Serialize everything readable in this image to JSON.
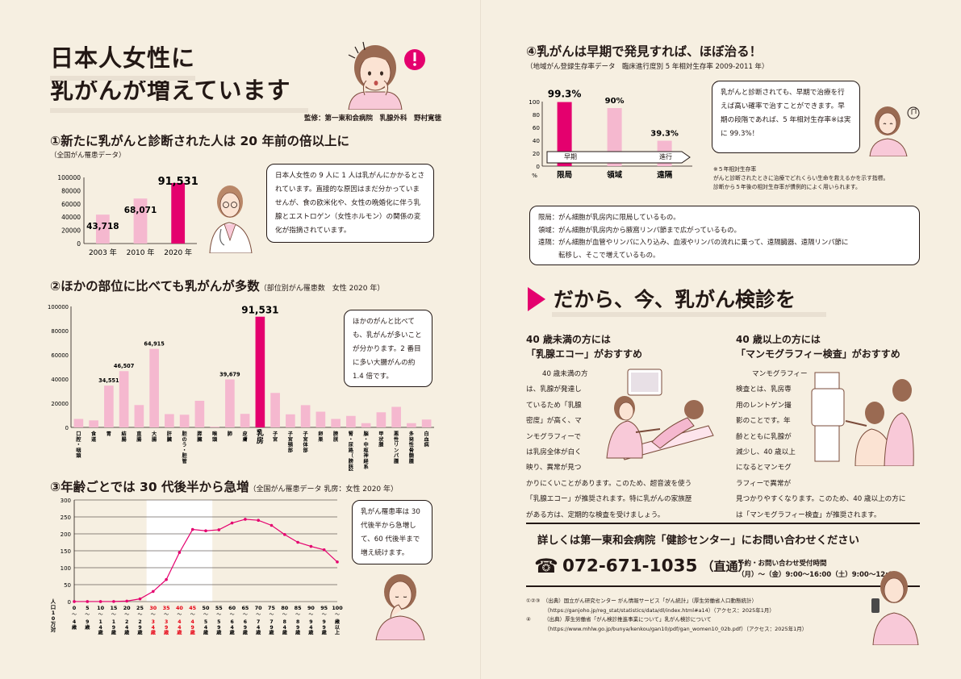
{
  "header": {
    "title_line1": "日本人女性に",
    "title_line2": "乳がんが増えています",
    "supervisor": "監修：第一東和会病院　乳腺外科　野村寛徳"
  },
  "section1": {
    "title": "①新たに乳がんと診断された人は 20 年前の倍以上に",
    "source": "（全国がん罹患データ）",
    "bubble": "日本人女性の 9 人に 1 人は乳がんにかかるとされています。直接的な原因はまだ分かっていませんが、食の欧米化や、女性の晩婚化に伴う乳腺とエストロゲン（女性ホルモン）の関係の変化が指摘されています。"
  },
  "section2": {
    "title": "②ほかの部位に比べても乳がんが多数",
    "subtitle": "（部位別がん罹患数　女性 2020 年）",
    "bubble": "ほかのがんと比べても、乳がんが多いことが分かります。2 番目に多い大腸がんの約 1.4 倍です。"
  },
  "section3": {
    "title": "③年齢ごとでは 30 代後半から急増",
    "subtitle": "（全国がん罹患データ 乳房：女性 2020 年）",
    "bubble": "乳がん罹患率は 30 代後半から急増して、60 代後半まで増え続けます。"
  },
  "section4": {
    "title": "④乳がんは早期で発見すれば、ほぼ治る！",
    "subtitle": "（地域がん登録生存率データ　臨床進行度別 5 年相対生存率 2009-2011 年）",
    "bubble": "乳がんと診断されても、早期で治療を行えば高い確率で治すことができます。早期の段階であれば、5 年相対生存率※は実に 99.3%！",
    "note_title": "※５年相対生存率",
    "note_line1": "がんと診断されたときに治療でどれくらい生命を救えるかを示す指標。",
    "note_line2": "診断から５年後の相対生存率が慣例的によく用いられます。",
    "stage_early": "早期",
    "stage_progress": "進行",
    "definitions": [
      "限局：がん細胞が乳房内に限局しているもの。",
      "領域：がん細胞が乳房内から腋窩リンパ節まで広がっているもの。",
      "遠隔：がん細胞が血管やリンパに入り込み、血液やリンパの流れに乗って、遠隔臓器、遠隔リンパ節に",
      "　　　転移し、そこで増えているもの。"
    ]
  },
  "screening": {
    "title": "だから、今、乳がん検診を",
    "under40_heading1": "40 歳未満の方には",
    "under40_heading2": "「乳腺エコー」がおすすめ",
    "under40_lines": [
      "40 歳未満の方",
      "は、乳腺が発達し",
      "ているため「乳腺",
      "密度」が高く、マ",
      "ンモグラフィーで",
      "は乳房全体が白く",
      "映り、異常が見つ",
      "かりにくいことがあります。このため、超音波を使う",
      "「乳腺エコー」が推奨されます。特に乳がんの家族歴",
      "がある方は、定期的な検査を受けましょう。"
    ],
    "over40_heading1": "40 歳以上の方には",
    "over40_heading2": "「マンモグラフィー検査」がおすすめ",
    "over40_lines": [
      "マンモグラフィー",
      "検査とは、乳房専",
      "用のレントゲン撮",
      "影のことです。年",
      "齢とともに乳腺が",
      "減少し、40 歳以上",
      "になるとマンモグ",
      "ラフィーで異常が",
      "見つかりやすくなります。このため、40 歳以上の方に",
      "は「マンモグラフィー検査」が推奨されます。"
    ]
  },
  "contact": {
    "heading": "詳しくは第一東和会病院「健診センター」にお問い合わせください",
    "phone": "072-671-1035",
    "phone_suffix": "（直通）",
    "hours_title": "予約・お問い合わせ受付時間",
    "hours": "（月）〜（金）9:00〜16:00（土）9:00〜12:00"
  },
  "footnotes": [
    "①②③　（出典）国立がん研究センター がん情報サービス「がん統計」（厚生労働省人口動態統計）",
    "　　　　（https://ganjoho.jp/reg_stat/statistics/data/dl/index.html#a14）（アクセス：2025年1月）",
    "④　　　（出典）厚生労働省「がん検診推進事業について」乳がん検診について",
    "　　　　（https://www.mhlw.go.jp/bunya/kenkou/gan10/pdf/gan_women10_02b.pdf）（アクセス：2025年1月）"
  ],
  "chart_data": [
    {
      "id": "new-cases",
      "type": "bar",
      "categories": [
        "2003 年",
        "2010 年",
        "2020 年"
      ],
      "values": [
        43718,
        68071,
        91531
      ],
      "value_labels": [
        "43,718",
        "68,071",
        "91,531"
      ],
      "yticks": [
        "100000",
        "80000",
        "60000",
        "40000",
        "20000",
        "0"
      ],
      "ylim": [
        0,
        100000
      ],
      "colors": [
        "#f5b8cf",
        "#f5b8cf",
        "#e4006e"
      ]
    },
    {
      "id": "by-site",
      "type": "bar",
      "categories": [
        "口腔・咽頭",
        "食道",
        "胃",
        "結腸",
        "直腸",
        "大腸",
        "肝臓",
        "胆のう・胆管",
        "膵臓",
        "喉頭",
        "肺",
        "皮膚",
        "乳房",
        "子宮",
        "子宮頸部",
        "子宮体部",
        "卵巣",
        "膀胱",
        "腎・尿路（膀胱除く）",
        "脳・中枢神経系",
        "甲状腺",
        "悪性リンパ腫",
        "多発性骨髄腫",
        "白血病"
      ],
      "values": [
        7000,
        5800,
        34551,
        46507,
        18500,
        64915,
        11000,
        10500,
        22000,
        600,
        39679,
        11200,
        91531,
        28500,
        10800,
        18400,
        13000,
        7000,
        9500,
        3500,
        12500,
        17000,
        3500,
        6500
      ],
      "value_labels": {
        "2": "34,551",
        "3": "46,507",
        "5": "64,915",
        "10": "39,679",
        "12": "91,531"
      },
      "yticks": [
        "100000",
        "80000",
        "60000",
        "40000",
        "20000",
        "0"
      ],
      "ylim": [
        0,
        100000
      ]
    },
    {
      "id": "by-age",
      "type": "line",
      "categories": [
        "0〜4歳",
        "5〜9歳",
        "10〜14歳",
        "15〜19歳",
        "20〜24歳",
        "25〜29歳",
        "30〜34歳",
        "35〜39歳",
        "40〜44歳",
        "45〜49歳",
        "50〜54歳",
        "55〜59歳",
        "60〜64歳",
        "65〜69歳",
        "70〜74歳",
        "75〜79歳",
        "80〜84歳",
        "85〜89歳",
        "90〜94歳",
        "95〜99歳",
        "100歳以上"
      ],
      "x_top": [
        "0",
        "5",
        "10",
        "15",
        "20",
        "25",
        "30",
        "35",
        "40",
        "45",
        "50",
        "55",
        "60",
        "65",
        "70",
        "75",
        "80",
        "85",
        "90",
        "95",
        "100"
      ],
      "x_bottom": [
        "4歳",
        "9歳",
        "14歳",
        "19歳",
        "24歳",
        "29歳",
        "34歳",
        "39歳",
        "44歳",
        "49歳",
        "54歳",
        "59歳",
        "64歳",
        "69歳",
        "74歳",
        "79歳",
        "84歳",
        "89歳",
        "94歳",
        "99歳",
        "歳以上"
      ],
      "red_indices": [
        6,
        7,
        8,
        9
      ],
      "values": [
        0.1,
        0.1,
        0.1,
        0.3,
        1.5,
        8,
        30,
        65,
        145,
        213,
        209,
        212,
        232,
        243,
        240,
        225,
        198,
        175,
        163,
        153,
        117
      ],
      "ylabel": "人口10万対",
      "yticks": [
        "300",
        "250",
        "200",
        "150",
        "100",
        "50",
        "0"
      ],
      "ylim": [
        0,
        300
      ],
      "color": "#e4006e"
    },
    {
      "id": "survival",
      "type": "bar",
      "categories": [
        "限局",
        "領域",
        "遠隔"
      ],
      "values": [
        99.3,
        90,
        39.3
      ],
      "value_labels": [
        "99.3%",
        "90%",
        "39.3%"
      ],
      "unit": "%",
      "yticks": [
        "100",
        "80",
        "60",
        "40",
        "20",
        "0"
      ],
      "ylim": [
        0,
        100
      ],
      "colors": [
        "#e4006e",
        "#f5b8cf",
        "#f5b8cf"
      ]
    }
  ]
}
